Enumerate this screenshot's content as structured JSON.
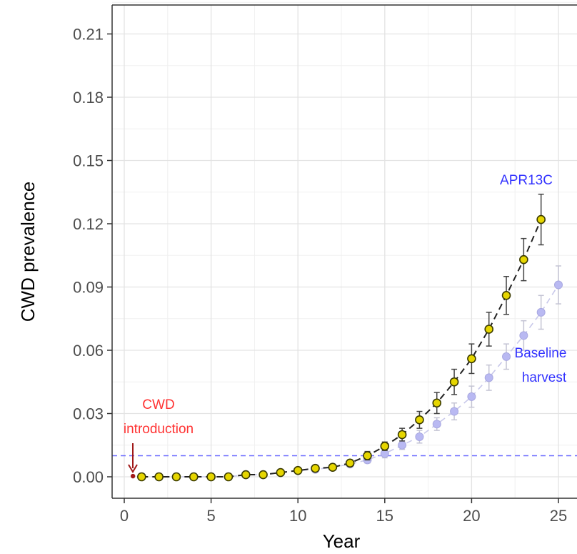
{
  "chart_data": {
    "type": "line",
    "xlabel": "Year",
    "ylabel": "CWD prevalence",
    "xlim": [
      -0.6,
      25.6
    ],
    "ylim": [
      -0.0105,
      0.2225
    ],
    "x_ticks": [
      0,
      5,
      10,
      15,
      20,
      25
    ],
    "x_tick_labels": [
      "0",
      "5",
      "10",
      "15",
      "20",
      "25"
    ],
    "y_ticks": [
      0.0,
      0.03,
      0.06,
      0.09,
      0.12,
      0.15,
      0.18,
      0.21
    ],
    "y_tick_labels": [
      "0.00",
      "0.03",
      "0.06",
      "0.09",
      "0.12",
      "0.15",
      "0.18",
      "0.21"
    ],
    "grid": true,
    "reference_line": {
      "y": 0.01,
      "style": "dashed",
      "color": "#6b6bff"
    },
    "series": [
      {
        "name": "Baseline harvest",
        "color": "#b9b9f2",
        "line_style": "dashed",
        "x": [
          1,
          2,
          3,
          4,
          5,
          6,
          7,
          8,
          9,
          10,
          11,
          12,
          13,
          14,
          15,
          16,
          17,
          18,
          19,
          20,
          21,
          22,
          23,
          24,
          25
        ],
        "y": [
          0.0,
          0.0,
          0.0,
          0.0,
          0.0,
          0.0,
          0.001,
          0.001,
          0.002,
          0.003,
          0.0035,
          0.0045,
          0.006,
          0.008,
          0.011,
          0.015,
          0.019,
          0.025,
          0.031,
          0.038,
          0.047,
          0.057,
          0.067,
          0.078,
          0.091
        ],
        "err": [
          0.0,
          0.0,
          0.0,
          0.0,
          0.0,
          0.0,
          0.0005,
          0.0005,
          0.001,
          0.001,
          0.001,
          0.0012,
          0.0012,
          0.0015,
          0.002,
          0.002,
          0.003,
          0.003,
          0.004,
          0.005,
          0.006,
          0.006,
          0.007,
          0.008,
          0.009
        ]
      },
      {
        "name": "APR13C",
        "color": "#e6d600",
        "line_style": "dashed",
        "x": [
          1,
          2,
          3,
          4,
          5,
          6,
          7,
          8,
          9,
          10,
          11,
          12,
          13,
          14,
          15,
          16,
          17,
          18,
          19,
          20,
          21,
          22,
          23,
          24
        ],
        "y": [
          0.0,
          0.0,
          0.0,
          0.0,
          0.0,
          0.0,
          0.001,
          0.001,
          0.002,
          0.003,
          0.004,
          0.0045,
          0.0065,
          0.01,
          0.0145,
          0.02,
          0.027,
          0.035,
          0.045,
          0.056,
          0.07,
          0.086,
          0.103,
          0.122
        ],
        "err": [
          0.0,
          0.0,
          0.0,
          0.0,
          0.0,
          0.0,
          0.0005,
          0.0005,
          0.001,
          0.001,
          0.001,
          0.0012,
          0.0015,
          0.002,
          0.002,
          0.003,
          0.004,
          0.005,
          0.006,
          0.007,
          0.008,
          0.009,
          0.01,
          0.012
        ]
      }
    ],
    "introduction_point": {
      "x": 0.5,
      "y": 0.001
    },
    "annotations": [
      {
        "id": "cwd_intro_line1",
        "text": "CWD",
        "color": "#ff3333"
      },
      {
        "id": "cwd_intro_line2",
        "text": "introduction",
        "color": "#ff3333"
      },
      {
        "id": "apr_label",
        "text": "APR13C",
        "color": "#3333ff"
      },
      {
        "id": "baseline_line1",
        "text": "Baseline",
        "color": "#3333ff"
      },
      {
        "id": "baseline_line2",
        "text": "harvest",
        "color": "#3333ff"
      }
    ]
  }
}
